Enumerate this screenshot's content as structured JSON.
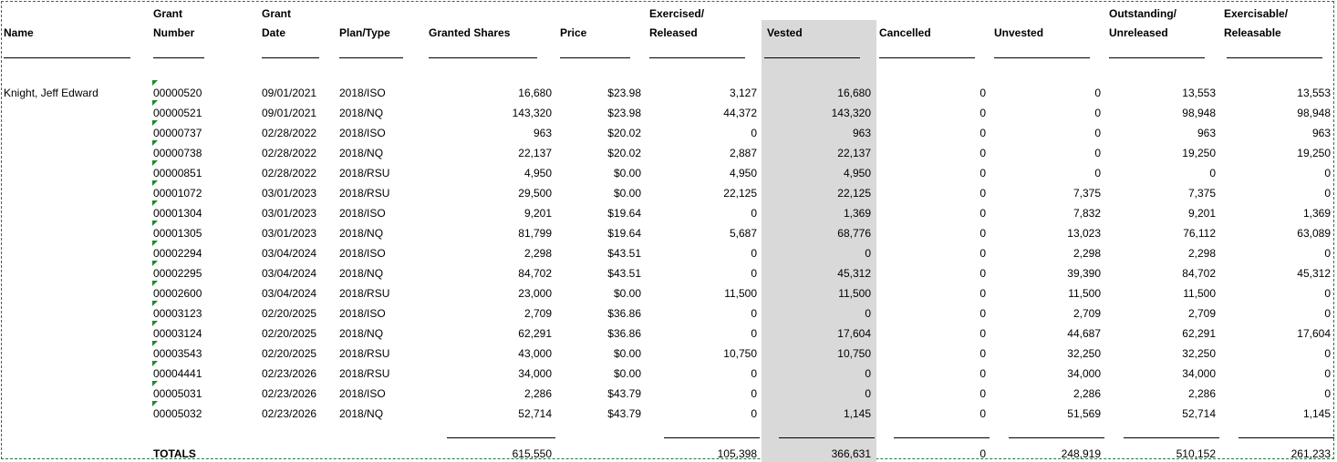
{
  "headers": {
    "name": "Name",
    "grant_number_1": "Grant",
    "grant_number_2": "Number",
    "grant_date_1": "Grant",
    "grant_date_2": "Date",
    "plan_type": "Plan/Type",
    "granted_shares": "Granted Shares",
    "price": "Price",
    "exercised_1": "Exercised/",
    "exercised_2": "Released",
    "vested": "Vested",
    "cancelled": "Cancelled",
    "unvested": "Unvested",
    "outstanding_1": "Outstanding/",
    "outstanding_2": "Unreleased",
    "exercisable_1": "Exercisable/",
    "exercisable_2": "Releasable"
  },
  "employee_name": "Knight, Jeff Edward",
  "rows": [
    {
      "grant": "00000520",
      "date": "09/01/2021",
      "plan": "2018/ISO",
      "granted": "16,680",
      "price": "$23.98",
      "exercised": "3,127",
      "vested": "16,680",
      "cancelled": "0",
      "unvested": "0",
      "outstanding": "13,553",
      "exercisable": "13,553"
    },
    {
      "grant": "00000521",
      "date": "09/01/2021",
      "plan": "2018/NQ",
      "granted": "143,320",
      "price": "$23.98",
      "exercised": "44,372",
      "vested": "143,320",
      "cancelled": "0",
      "unvested": "0",
      "outstanding": "98,948",
      "exercisable": "98,948"
    },
    {
      "grant": "00000737",
      "date": "02/28/2022",
      "plan": "2018/ISO",
      "granted": "963",
      "price": "$20.02",
      "exercised": "0",
      "vested": "963",
      "cancelled": "0",
      "unvested": "0",
      "outstanding": "963",
      "exercisable": "963"
    },
    {
      "grant": "00000738",
      "date": "02/28/2022",
      "plan": "2018/NQ",
      "granted": "22,137",
      "price": "$20.02",
      "exercised": "2,887",
      "vested": "22,137",
      "cancelled": "0",
      "unvested": "0",
      "outstanding": "19,250",
      "exercisable": "19,250"
    },
    {
      "grant": "00000851",
      "date": "02/28/2022",
      "plan": "2018/RSU",
      "granted": "4,950",
      "price": "$0.00",
      "exercised": "4,950",
      "vested": "4,950",
      "cancelled": "0",
      "unvested": "0",
      "outstanding": "0",
      "exercisable": "0"
    },
    {
      "grant": "00001072",
      "date": "03/01/2023",
      "plan": "2018/RSU",
      "granted": "29,500",
      "price": "$0.00",
      "exercised": "22,125",
      "vested": "22,125",
      "cancelled": "0",
      "unvested": "7,375",
      "outstanding": "7,375",
      "exercisable": "0"
    },
    {
      "grant": "00001304",
      "date": "03/01/2023",
      "plan": "2018/ISO",
      "granted": "9,201",
      "price": "$19.64",
      "exercised": "0",
      "vested": "1,369",
      "cancelled": "0",
      "unvested": "7,832",
      "outstanding": "9,201",
      "exercisable": "1,369"
    },
    {
      "grant": "00001305",
      "date": "03/01/2023",
      "plan": "2018/NQ",
      "granted": "81,799",
      "price": "$19.64",
      "exercised": "5,687",
      "vested": "68,776",
      "cancelled": "0",
      "unvested": "13,023",
      "outstanding": "76,112",
      "exercisable": "63,089"
    },
    {
      "grant": "00002294",
      "date": "03/04/2024",
      "plan": "2018/ISO",
      "granted": "2,298",
      "price": "$43.51",
      "exercised": "0",
      "vested": "0",
      "cancelled": "0",
      "unvested": "2,298",
      "outstanding": "2,298",
      "exercisable": "0"
    },
    {
      "grant": "00002295",
      "date": "03/04/2024",
      "plan": "2018/NQ",
      "granted": "84,702",
      "price": "$43.51",
      "exercised": "0",
      "vested": "45,312",
      "cancelled": "0",
      "unvested": "39,390",
      "outstanding": "84,702",
      "exercisable": "45,312"
    },
    {
      "grant": "00002600",
      "date": "03/04/2024",
      "plan": "2018/RSU",
      "granted": "23,000",
      "price": "$0.00",
      "exercised": "11,500",
      "vested": "11,500",
      "cancelled": "0",
      "unvested": "11,500",
      "outstanding": "11,500",
      "exercisable": "0"
    },
    {
      "grant": "00003123",
      "date": "02/20/2025",
      "plan": "2018/ISO",
      "granted": "2,709",
      "price": "$36.86",
      "exercised": "0",
      "vested": "0",
      "cancelled": "0",
      "unvested": "2,709",
      "outstanding": "2,709",
      "exercisable": "0"
    },
    {
      "grant": "00003124",
      "date": "02/20/2025",
      "plan": "2018/NQ",
      "granted": "62,291",
      "price": "$36.86",
      "exercised": "0",
      "vested": "17,604",
      "cancelled": "0",
      "unvested": "44,687",
      "outstanding": "62,291",
      "exercisable": "17,604"
    },
    {
      "grant": "00003543",
      "date": "02/20/2025",
      "plan": "2018/RSU",
      "granted": "43,000",
      "price": "$0.00",
      "exercised": "10,750",
      "vested": "10,750",
      "cancelled": "0",
      "unvested": "32,250",
      "outstanding": "32,250",
      "exercisable": "0"
    },
    {
      "grant": "00004441",
      "date": "02/23/2026",
      "plan": "2018/RSU",
      "granted": "34,000",
      "price": "$0.00",
      "exercised": "0",
      "vested": "0",
      "cancelled": "0",
      "unvested": "34,000",
      "outstanding": "34,000",
      "exercisable": "0"
    },
    {
      "grant": "00005031",
      "date": "02/23/2026",
      "plan": "2018/ISO",
      "granted": "2,286",
      "price": "$43.79",
      "exercised": "0",
      "vested": "0",
      "cancelled": "0",
      "unvested": "2,286",
      "outstanding": "2,286",
      "exercisable": "0"
    },
    {
      "grant": "00005032",
      "date": "02/23/2026",
      "plan": "2018/NQ",
      "granted": "52,714",
      "price": "$43.79",
      "exercised": "0",
      "vested": "1,145",
      "cancelled": "0",
      "unvested": "51,569",
      "outstanding": "52,714",
      "exercisable": "1,145"
    }
  ],
  "totals": {
    "label": "TOTALS",
    "granted": "615,550",
    "exercised": "105,398",
    "vested": "366,631",
    "cancelled": "0",
    "unvested": "248,919",
    "outstanding": "510,152",
    "exercisable": "261,233"
  },
  "colors": {
    "vested_band": "#d9d9d9",
    "border": "#1f7a3a",
    "cell_marker": "#1a8a2a"
  }
}
